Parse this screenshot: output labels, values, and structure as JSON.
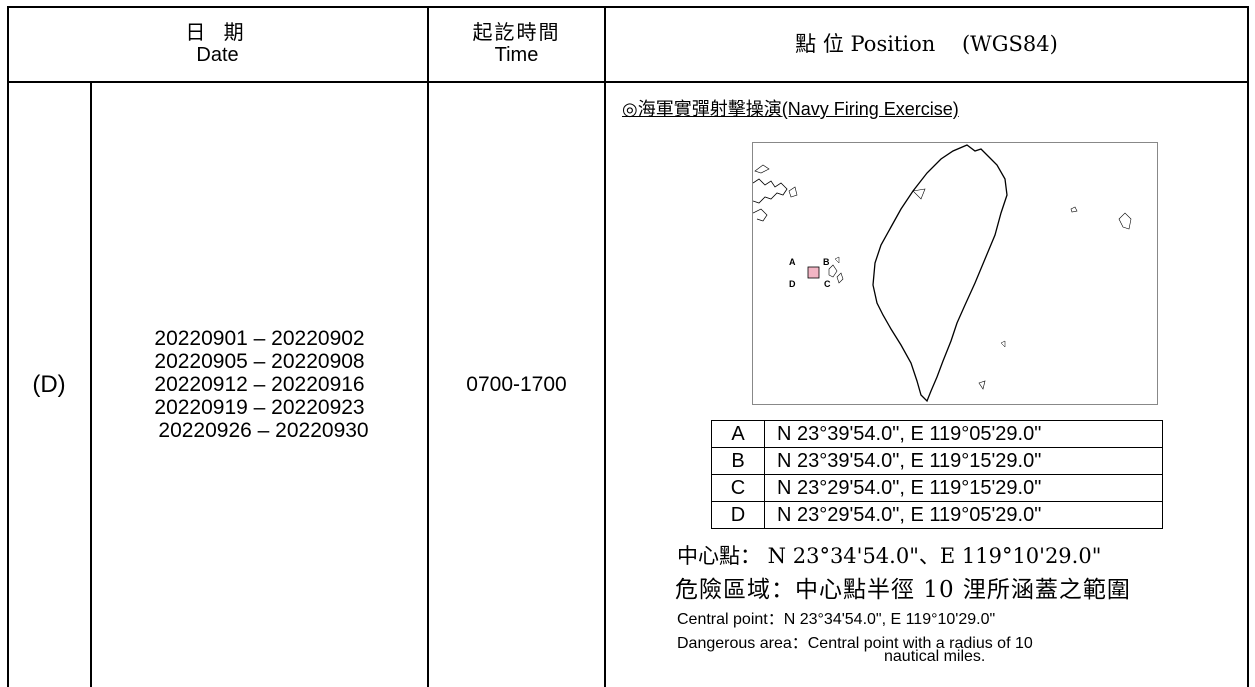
{
  "header": {
    "date_zh": "日 期",
    "date_en": "Date",
    "time_zh": "起訖時間",
    "time_en": "Time",
    "position": "點 位 Position    (WGS84)"
  },
  "row": {
    "id": "(D)",
    "dates": [
      "20220901 – 20220902",
      "20220905 – 20220908",
      "20220912 – 20220916",
      "20220919 – 20220923",
      "20220926 – 20220930"
    ],
    "time": "0700-1700",
    "exercise_zh": "◎海軍實彈射擊操演",
    "exercise_en": "(Navy Firing Exercise)",
    "map_labels": {
      "a": "A",
      "b": "B",
      "c": "C",
      "d": "D"
    },
    "points": [
      {
        "id": "A",
        "coord": "N 23°39'54.0\", E 119°05'29.0\""
      },
      {
        "id": "B",
        "coord": "N 23°39'54.0\", E 119°15'29.0\""
      },
      {
        "id": "C",
        "coord": "N 23°29'54.0\", E 119°15'29.0\""
      },
      {
        "id": "D",
        "coord": "N 23°29'54.0\", E 119°05'29.0\""
      }
    ],
    "center_zh": "中心點：  N 23°34'54.0\"、E 119°10'29.0\"",
    "danger_zh": "危險區域：中心點半徑 10 浬所涵蓋之範圍",
    "central_en": "Central point：N 23°34'54.0\", E 119°10'29.0\"",
    "danger_en_1": "Dangerous area：Central point with a radius of 10",
    "danger_en_2": "nautical miles.",
    "zone_color": "#f2b5c4"
  }
}
